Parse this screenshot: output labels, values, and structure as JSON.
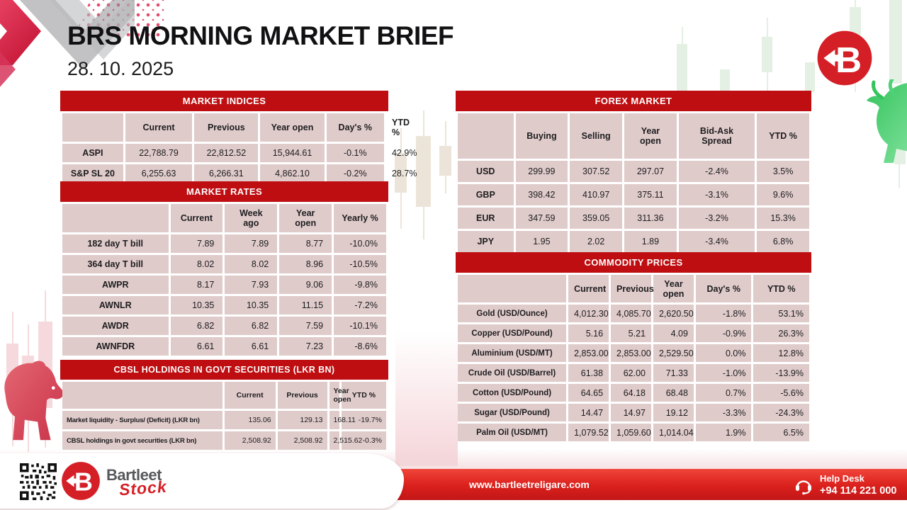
{
  "header": {
    "title": "BRS MORNING MARKET BRIEF",
    "date": "28. 10. 2025"
  },
  "tables": {
    "market_indices": {
      "title": "MARKET INDICES",
      "columns": [
        "",
        "Current",
        "Previous",
        "Year open",
        "Day's %",
        "YTD %"
      ],
      "rows": [
        {
          "label": "ASPI",
          "values": [
            "22,788.79",
            "22,812.52",
            "15,944.61",
            "-0.1%",
            "42.9%"
          ]
        },
        {
          "label": "S&P SL 20",
          "values": [
            "6,255.63",
            "6,266.31",
            "4,862.10",
            "-0.2%",
            "28.7%"
          ]
        }
      ]
    },
    "market_rates": {
      "title": "MARKET RATES",
      "columns": [
        "",
        "Current",
        "Week ago",
        "Year open",
        "Yearly %"
      ],
      "rows": [
        {
          "label": "182 day T bill",
          "values": [
            "7.89",
            "7.89",
            "8.77",
            "-10.0%"
          ]
        },
        {
          "label": "364 day T bill",
          "values": [
            "8.02",
            "8.02",
            "8.96",
            "-10.5%"
          ]
        },
        {
          "label": "AWPR",
          "values": [
            "8.17",
            "7.93",
            "9.06",
            "-9.8%"
          ]
        },
        {
          "label": "AWNLR",
          "values": [
            "10.35",
            "10.35",
            "11.15",
            "-7.2%"
          ]
        },
        {
          "label": "AWDR",
          "values": [
            "6.82",
            "6.82",
            "7.59",
            "-10.1%"
          ]
        },
        {
          "label": "AWNFDR",
          "values": [
            "6.61",
            "6.61",
            "7.23",
            "-8.6%"
          ]
        }
      ]
    },
    "cbsl_holdings": {
      "title": "CBSL HOLDINGS IN GOVT SECURITIES (LKR BN)",
      "columns": [
        "",
        "Current",
        "Previous",
        "Year open",
        "YTD %"
      ],
      "rows": [
        {
          "label": "Market liquidity - Surplus/ (Deficit) (LKR bn)",
          "values": [
            "135.06",
            "129.13",
            "168.11",
            "-19.7%"
          ]
        },
        {
          "label": "CBSL holdings in govt securities (LKR bn)",
          "values": [
            "2,508.92",
            "2,508.92",
            "2,515.62",
            "-0.3%"
          ]
        }
      ]
    },
    "forex_market": {
      "title": "FOREX MARKET",
      "columns": [
        "",
        "Buying",
        "Selling",
        "Year open",
        "Bid-Ask Spread",
        "YTD %"
      ],
      "rows": [
        {
          "label": "USD",
          "values": [
            "299.99",
            "307.52",
            "297.07",
            "-2.4%",
            "3.5%"
          ]
        },
        {
          "label": "GBP",
          "values": [
            "398.42",
            "410.97",
            "375.11",
            "-3.1%",
            "9.6%"
          ]
        },
        {
          "label": "EUR",
          "values": [
            "347.59",
            "359.05",
            "311.36",
            "-3.2%",
            "15.3%"
          ]
        },
        {
          "label": "JPY",
          "values": [
            "1.95",
            "2.02",
            "1.89",
            "-3.4%",
            "6.8%"
          ]
        }
      ]
    },
    "commodity_prices": {
      "title": "COMMODITY PRICES",
      "columns": [
        "",
        "Current",
        "Previous",
        "Year open",
        "Day's %",
        "YTD %"
      ],
      "rows": [
        {
          "label": "Gold (USD/Ounce)",
          "values": [
            "4,012.30",
            "4,085.70",
            "2,620.50",
            "-1.8%",
            "53.1%"
          ]
        },
        {
          "label": "Copper (USD/Pound)",
          "values": [
            "5.16",
            "5.21",
            "4.09",
            "-0.9%",
            "26.3%"
          ]
        },
        {
          "label": "Aluminium (USD/MT)",
          "values": [
            "2,853.00",
            "2,853.00",
            "2,529.50",
            "0.0%",
            "12.8%"
          ]
        },
        {
          "label": "Crude Oil (USD/Barrel)",
          "values": [
            "61.38",
            "62.00",
            "71.33",
            "-1.0%",
            "-13.9%"
          ]
        },
        {
          "label": "Cotton (USD/Pound)",
          "values": [
            "64.65",
            "64.18",
            "68.48",
            "0.7%",
            "-5.6%"
          ]
        },
        {
          "label": "Sugar (USD/Pound)",
          "values": [
            "14.47",
            "14.97",
            "19.12",
            "-3.3%",
            "-24.3%"
          ]
        },
        {
          "label": "Palm Oil (USD/MT)",
          "values": [
            "1,079.52",
            "1,059.60",
            "1,014.04",
            "1.9%",
            "6.5%"
          ]
        }
      ]
    }
  },
  "footer": {
    "brand_name": "Bartleet",
    "brand_sub": "Stock",
    "website": "www.bartleetreligare.com",
    "helpdesk_label": "Help Desk",
    "helpdesk_phone": "+94 114 221 000"
  },
  "colors": {
    "table_header_red": "#be0e11",
    "cell_pink": "#e0cbcb",
    "footer_red": "#da201c",
    "logo_red": "#d51f26",
    "bull_green": "#52d273",
    "bear_red": "#da4b5c"
  }
}
